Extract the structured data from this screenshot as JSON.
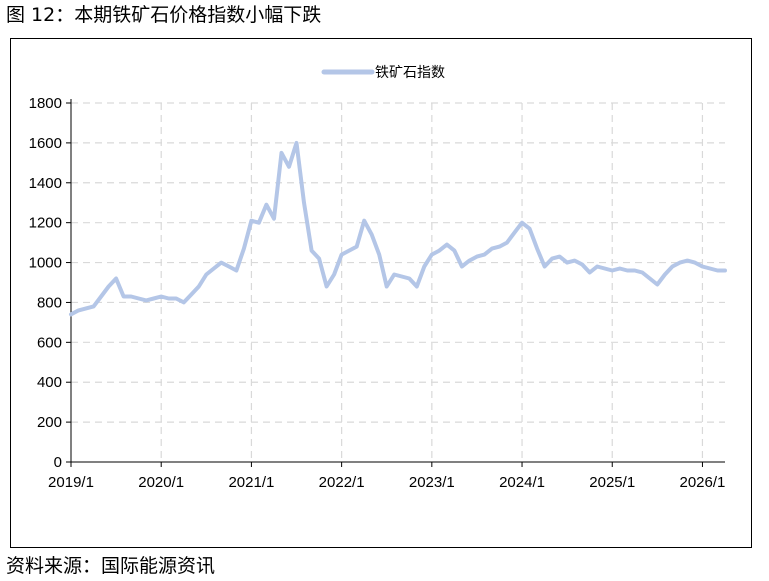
{
  "figure": {
    "title": "图 12：本期铁矿石价格指数小幅下跌",
    "source": "资料来源：国际能源资讯"
  },
  "colors": {
    "series": "#b4c6e7",
    "grid": "#d9d9d9",
    "axis": "#000000"
  },
  "chart_data": {
    "type": "line",
    "title": "",
    "xlabel": "",
    "ylabel": "",
    "ylim": [
      0,
      1800
    ],
    "yticks": [
      0,
      200,
      400,
      600,
      800,
      1000,
      1200,
      1400,
      1600,
      1800
    ],
    "xlim": [
      "2019/1",
      "2026/4"
    ],
    "xticks": [
      "2019/1",
      "2020/1",
      "2021/1",
      "2022/1",
      "2023/1",
      "2024/1",
      "2025/1",
      "2026/1"
    ],
    "grid": "dashed",
    "legend": "top-center",
    "series": [
      {
        "name": "铁矿石指数",
        "points": [
          [
            "2019/01",
            740
          ],
          [
            "2019/02",
            760
          ],
          [
            "2019/03",
            770
          ],
          [
            "2019/04",
            780
          ],
          [
            "2019/05",
            830
          ],
          [
            "2019/06",
            880
          ],
          [
            "2019/07",
            920
          ],
          [
            "2019/08",
            830
          ],
          [
            "2019/09",
            830
          ],
          [
            "2019/10",
            820
          ],
          [
            "2019/11",
            810
          ],
          [
            "2019/12",
            820
          ],
          [
            "2020/01",
            830
          ],
          [
            "2020/02",
            820
          ],
          [
            "2020/03",
            820
          ],
          [
            "2020/04",
            800
          ],
          [
            "2020/05",
            840
          ],
          [
            "2020/06",
            880
          ],
          [
            "2020/07",
            940
          ],
          [
            "2020/08",
            970
          ],
          [
            "2020/09",
            1000
          ],
          [
            "2020/10",
            980
          ],
          [
            "2020/11",
            960
          ],
          [
            "2020/12",
            1070
          ],
          [
            "2021/01",
            1210
          ],
          [
            "2021/02",
            1200
          ],
          [
            "2021/03",
            1290
          ],
          [
            "2021/04",
            1220
          ],
          [
            "2021/05",
            1550
          ],
          [
            "2021/06",
            1480
          ],
          [
            "2021/07",
            1600
          ],
          [
            "2021/08",
            1300
          ],
          [
            "2021/09",
            1060
          ],
          [
            "2021/10",
            1020
          ],
          [
            "2021/11",
            880
          ],
          [
            "2021/12",
            940
          ],
          [
            "2022/01",
            1040
          ],
          [
            "2022/02",
            1060
          ],
          [
            "2022/03",
            1080
          ],
          [
            "2022/04",
            1210
          ],
          [
            "2022/05",
            1140
          ],
          [
            "2022/06",
            1040
          ],
          [
            "2022/07",
            880
          ],
          [
            "2022/08",
            940
          ],
          [
            "2022/09",
            930
          ],
          [
            "2022/10",
            920
          ],
          [
            "2022/11",
            880
          ],
          [
            "2022/12",
            980
          ],
          [
            "2023/01",
            1040
          ],
          [
            "2023/02",
            1060
          ],
          [
            "2023/03",
            1090
          ],
          [
            "2023/04",
            1060
          ],
          [
            "2023/05",
            980
          ],
          [
            "2023/06",
            1010
          ],
          [
            "2023/07",
            1030
          ],
          [
            "2023/08",
            1040
          ],
          [
            "2023/09",
            1070
          ],
          [
            "2023/10",
            1080
          ],
          [
            "2023/11",
            1100
          ],
          [
            "2023/12",
            1150
          ],
          [
            "2024/01",
            1200
          ],
          [
            "2024/02",
            1170
          ],
          [
            "2024/03",
            1070
          ],
          [
            "2024/04",
            980
          ],
          [
            "2024/05",
            1020
          ],
          [
            "2024/06",
            1030
          ],
          [
            "2024/07",
            1000
          ],
          [
            "2024/08",
            1010
          ],
          [
            "2024/09",
            990
          ],
          [
            "2024/10",
            950
          ],
          [
            "2024/11",
            980
          ],
          [
            "2024/12",
            970
          ],
          [
            "2025/01",
            960
          ],
          [
            "2025/02",
            970
          ],
          [
            "2025/03",
            960
          ],
          [
            "2025/04",
            960
          ],
          [
            "2025/05",
            950
          ],
          [
            "2025/06",
            920
          ],
          [
            "2025/07",
            890
          ],
          [
            "2025/08",
            940
          ],
          [
            "2025/09",
            980
          ],
          [
            "2025/10",
            1000
          ],
          [
            "2025/11",
            1010
          ],
          [
            "2025/12",
            1000
          ],
          [
            "2026/01",
            980
          ],
          [
            "2026/02",
            970
          ],
          [
            "2026/03",
            960
          ],
          [
            "2026/04",
            960
          ]
        ]
      }
    ]
  }
}
